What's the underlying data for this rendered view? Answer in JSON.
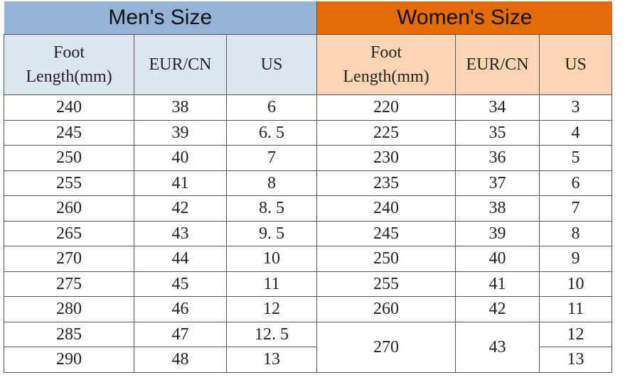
{
  "men": {
    "title": "Men's Size",
    "headers": [
      "Foot Length(mm)",
      "EUR/CN",
      "US"
    ],
    "header_color": "#95b3d7",
    "subheader_color": "#dce6f1",
    "rows": [
      [
        "240",
        "38",
        "6"
      ],
      [
        "245",
        "39",
        "6. 5"
      ],
      [
        "250",
        "40",
        "7"
      ],
      [
        "255",
        "41",
        "8"
      ],
      [
        "260",
        "42",
        "8. 5"
      ],
      [
        "265",
        "43",
        "9. 5"
      ],
      [
        "270",
        "44",
        "10"
      ],
      [
        "275",
        "45",
        "11"
      ],
      [
        "280",
        "46",
        "12"
      ],
      [
        "285",
        "47",
        "12. 5"
      ],
      [
        "290",
        "48",
        "13"
      ]
    ]
  },
  "women": {
    "title": "Women's Size",
    "headers": [
      "Foot Length(mm)",
      "EUR/CN",
      "US"
    ],
    "header_color": "#e26b0a",
    "subheader_color": "#fcd5b4",
    "rows": [
      [
        "220",
        "34",
        "3"
      ],
      [
        "225",
        "35",
        "4"
      ],
      [
        "230",
        "36",
        "5"
      ],
      [
        "235",
        "37",
        "6"
      ],
      [
        "240",
        "38",
        "7"
      ],
      [
        "245",
        "39",
        "8"
      ],
      [
        "250",
        "40",
        "9"
      ],
      [
        "255",
        "41",
        "10"
      ],
      [
        "260",
        "42",
        "11"
      ],
      [
        "270",
        "43",
        "12"
      ],
      [
        "",
        "",
        "13"
      ]
    ]
  }
}
